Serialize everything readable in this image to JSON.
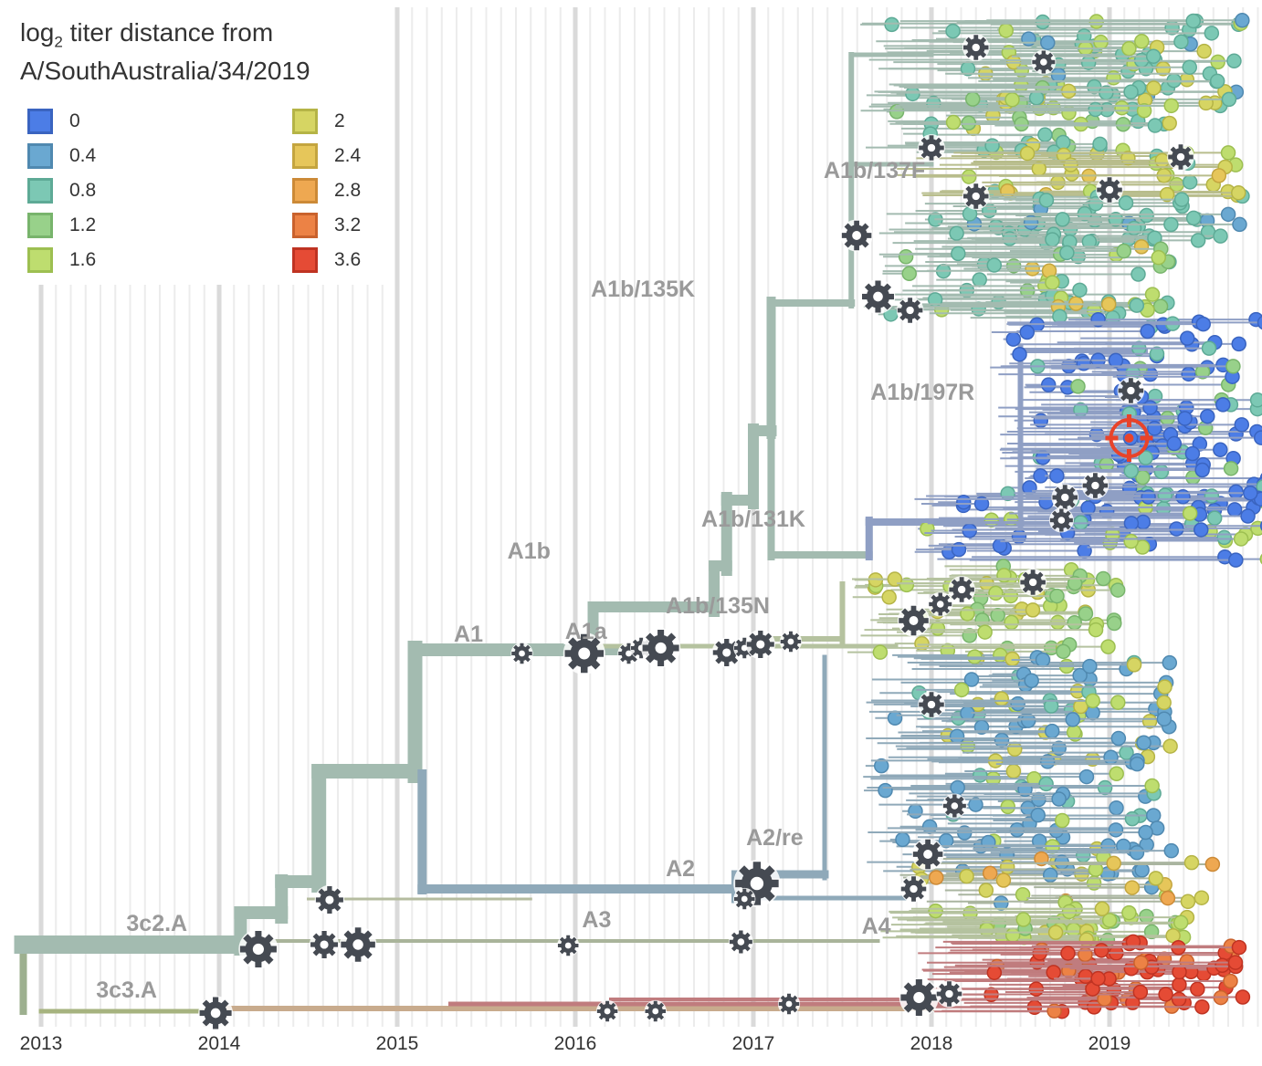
{
  "legend": {
    "title_prefix": "log",
    "title_sub": "2",
    "title_line1_rest": " titer distance from",
    "title_line2": "A/SouthAustralia/34/2019",
    "items": [
      {
        "label": "0",
        "fill": "#4c7de6",
        "border": "#3a64c0"
      },
      {
        "label": "0.4",
        "fill": "#6aa8d1",
        "border": "#5089b0"
      },
      {
        "label": "0.8",
        "fill": "#7cc8b4",
        "border": "#5eaa96"
      },
      {
        "label": "1.2",
        "fill": "#98d18a",
        "border": "#78b46c"
      },
      {
        "label": "1.6",
        "fill": "#bedd6f",
        "border": "#9dbf51"
      },
      {
        "label": "2",
        "fill": "#d6d563",
        "border": "#b5b446"
      },
      {
        "label": "2.4",
        "fill": "#e6c65a",
        "border": "#c4a53f"
      },
      {
        "label": "2.8",
        "fill": "#eea851",
        "border": "#cc8a37"
      },
      {
        "label": "3.2",
        "fill": "#ec8245",
        "border": "#c9622d"
      },
      {
        "label": "3.6",
        "fill": "#e54b35",
        "border": "#bf3322"
      }
    ]
  },
  "chart_data": {
    "type": "scatter",
    "title": "",
    "xlabel": "",
    "ylabel": "",
    "x_ticks": [
      "2013",
      "2014",
      "2015",
      "2016",
      "2017",
      "2018",
      "2019"
    ],
    "xlim": [
      2012.9,
      2019.87
    ],
    "grid": true,
    "legend_placement": "top-left",
    "clades": [
      {
        "name": "3c2.A",
        "date": 2014.0
      },
      {
        "name": "3c3.A",
        "date": 2013.6
      },
      {
        "name": "A1",
        "date": 2015.5
      },
      {
        "name": "A1a",
        "date": 2016.05
      },
      {
        "name": "A1b",
        "date": 2015.85
      },
      {
        "name": "A1b/135N",
        "date": 2016.85
      },
      {
        "name": "A1b/131K",
        "date": 2017.0
      },
      {
        "name": "A1b/135K",
        "date": 2016.4
      },
      {
        "name": "A1b/137F",
        "date": 2017.7
      },
      {
        "name": "A1b/197R",
        "date": 2017.95
      },
      {
        "name": "A2",
        "date": 2016.6
      },
      {
        "name": "A2/re",
        "date": 2017.1
      },
      {
        "name": "A3",
        "date": 2016.1
      },
      {
        "name": "A4",
        "date": 2017.65
      }
    ],
    "reference_strain": "A/SouthAustralia/34/2019",
    "color_by": "log2 titer distance"
  }
}
